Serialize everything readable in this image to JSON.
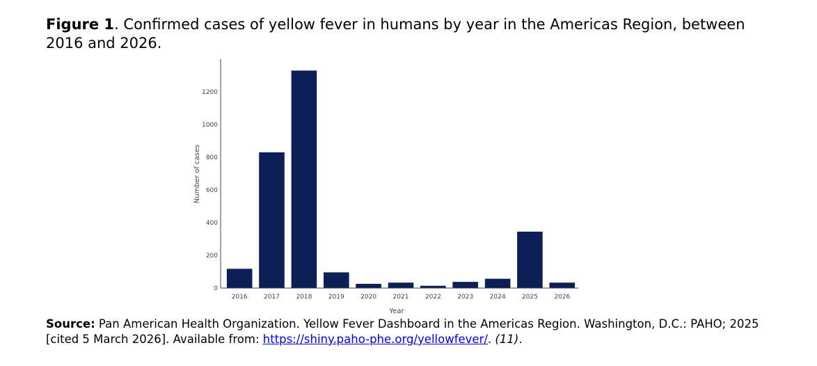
{
  "figure": {
    "label": "Figure 1",
    "label_suffix": ".",
    "caption": " Confirmed cases of yellow fever in humans by year in the Americas Region, between 2016 and 2026."
  },
  "chart_data": {
    "type": "bar",
    "categories": [
      "2016",
      "2017",
      "2018",
      "2019",
      "2020",
      "2021",
      "2022",
      "2023",
      "2024",
      "2025",
      "2026"
    ],
    "values": [
      118,
      830,
      1330,
      96,
      26,
      33,
      14,
      38,
      57,
      345,
      33
    ],
    "xlabel": "Year",
    "ylabel": "Number of cases",
    "ylim": [
      0,
      1400
    ],
    "yticks": [
      0,
      200,
      400,
      600,
      800,
      1000,
      1200
    ],
    "bar_color": "#0d1f57",
    "grid": false
  },
  "source": {
    "label": "Source:",
    "text": " Pan American Health Organization. Yellow Fever Dashboard in the Americas Region. Washington, D.C.: PAHO; 2025 [cited 5 March 2026]. Available from: ",
    "link": "https://shiny.paho-phe.org/yellowfever/",
    "after_link": ". ",
    "ref": "(11)",
    "end": "."
  }
}
